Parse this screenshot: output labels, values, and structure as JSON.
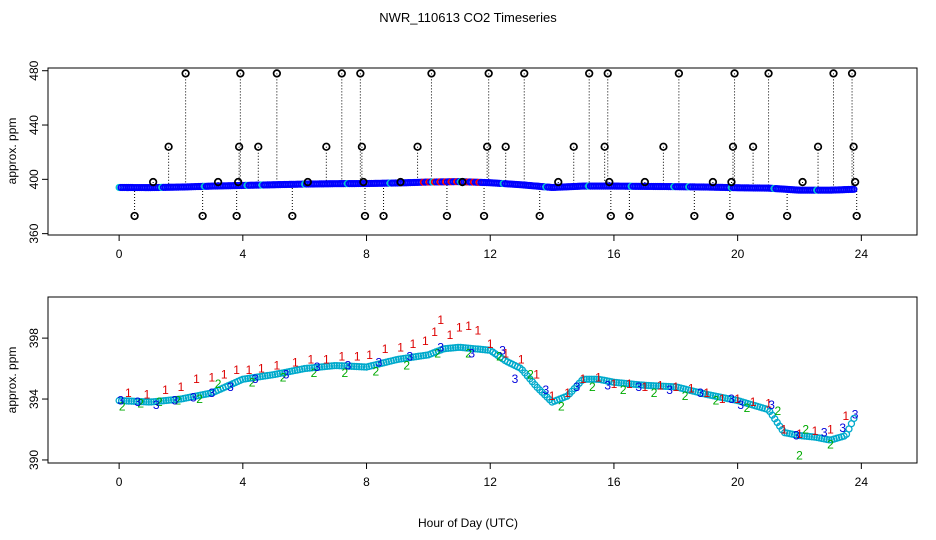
{
  "figure": {
    "title": "NWR_110613  CO2 Timeseries",
    "xlabel": "Hour of Day (UTC)"
  },
  "colors": {
    "outlier": "#000000",
    "main": "#0000ff",
    "secondary": "#ff0000",
    "highlight": "#00cccc",
    "series1": "#dd0000",
    "series2": "#00aa00",
    "series3": "#0000dd",
    "circle": "#00aacc"
  },
  "chart_data": [
    {
      "type": "scatter",
      "panel": "top",
      "title": "",
      "xlabel": "",
      "ylabel": "approx. ppm",
      "xlim": [
        -2.3,
        25.8
      ],
      "ylim": [
        359,
        482
      ],
      "xticks": [
        0,
        4,
        8,
        12,
        16,
        20,
        24
      ],
      "yticks": [
        360,
        400,
        440,
        480
      ],
      "baseline": [
        [
          0,
          394.0
        ],
        [
          1,
          393.9
        ],
        [
          2,
          394.3
        ],
        [
          3,
          395.0
        ],
        [
          4,
          395.5
        ],
        [
          5,
          396.0
        ],
        [
          6,
          396.5
        ],
        [
          7,
          396.8
        ],
        [
          8,
          396.9
        ],
        [
          9,
          397.3
        ],
        [
          10,
          398.0
        ],
        [
          11,
          398.3
        ],
        [
          12,
          397.5
        ],
        [
          13,
          396.0
        ],
        [
          14,
          394.0
        ],
        [
          15,
          395.0
        ],
        [
          16,
          395.0
        ],
        [
          17,
          394.8
        ],
        [
          18,
          394.6
        ],
        [
          19,
          394.3
        ],
        [
          20,
          393.8
        ],
        [
          21,
          393.5
        ],
        [
          22,
          392.0
        ],
        [
          23,
          392.0
        ],
        [
          23.8,
          392.7
        ]
      ],
      "outliers": [
        [
          0.5,
          373
        ],
        [
          1.1,
          398
        ],
        [
          1.6,
          424
        ],
        [
          2.15,
          478
        ],
        [
          2.7,
          373
        ],
        [
          3.2,
          398
        ],
        [
          3.8,
          373
        ],
        [
          3.88,
          424
        ],
        [
          3.92,
          478
        ],
        [
          3.85,
          398
        ],
        [
          4.5,
          424
        ],
        [
          5.1,
          478
        ],
        [
          5.6,
          373
        ],
        [
          6.1,
          398
        ],
        [
          6.7,
          424
        ],
        [
          7.2,
          478
        ],
        [
          7.8,
          478
        ],
        [
          7.85,
          424
        ],
        [
          7.9,
          398
        ],
        [
          7.95,
          373
        ],
        [
          8.55,
          373
        ],
        [
          9.1,
          398
        ],
        [
          9.65,
          424
        ],
        [
          10.1,
          478
        ],
        [
          10.6,
          373
        ],
        [
          11.1,
          398
        ],
        [
          11.8,
          373
        ],
        [
          11.9,
          424
        ],
        [
          11.95,
          478
        ],
        [
          12.5,
          424
        ],
        [
          13.1,
          478
        ],
        [
          13.6,
          373
        ],
        [
          14.2,
          398
        ],
        [
          14.7,
          424
        ],
        [
          15.2,
          478
        ],
        [
          15.7,
          424
        ],
        [
          15.8,
          478
        ],
        [
          15.85,
          398
        ],
        [
          15.9,
          373
        ],
        [
          16.5,
          373
        ],
        [
          17.0,
          398
        ],
        [
          17.6,
          424
        ],
        [
          18.1,
          478
        ],
        [
          18.6,
          373
        ],
        [
          19.2,
          398
        ],
        [
          19.75,
          373
        ],
        [
          19.85,
          424
        ],
        [
          19.9,
          478
        ],
        [
          19.8,
          398
        ],
        [
          20.5,
          424
        ],
        [
          21.0,
          478
        ],
        [
          21.6,
          373
        ],
        [
          22.1,
          398
        ],
        [
          22.6,
          424
        ],
        [
          23.1,
          478
        ],
        [
          23.7,
          478
        ],
        [
          23.75,
          424
        ],
        [
          23.8,
          398
        ],
        [
          23.85,
          373
        ]
      ]
    },
    {
      "type": "scatter",
      "panel": "bottom",
      "title": "",
      "xlabel": "Hour of Day (UTC)",
      "ylabel": "approx. ppm",
      "xlim": [
        -2.3,
        25.8
      ],
      "ylim": [
        389.8,
        400.7
      ],
      "xticks": [
        0,
        4,
        8,
        12,
        16,
        20,
        24
      ],
      "yticks": [
        390,
        394,
        398
      ],
      "series": [
        {
          "label": "1",
          "x": [
            0.3,
            0.9,
            1.5,
            2.0,
            2.5,
            3.0,
            3.4,
            3.8,
            4.2,
            4.6,
            5.1,
            5.7,
            6.2,
            6.7,
            7.2,
            7.7,
            8.1,
            8.6,
            9.1,
            9.5,
            9.9,
            10.2,
            10.4,
            10.7,
            11.0,
            11.3,
            11.6,
            12.0,
            12.5,
            13.0,
            13.5,
            14.0,
            14.5,
            15.0,
            15.5,
            16.0,
            16.5,
            17.0,
            17.5,
            18.0,
            18.5,
            19.0,
            19.5,
            20.0,
            20.5,
            21.0,
            21.5,
            22.0,
            22.5,
            23.0,
            23.5
          ],
          "y": [
            394.4,
            394.3,
            394.6,
            394.8,
            395.3,
            395.4,
            395.6,
            395.9,
            395.9,
            396.0,
            396.2,
            396.4,
            396.6,
            396.6,
            396.8,
            396.8,
            396.9,
            397.3,
            397.4,
            397.6,
            397.8,
            398.4,
            399.2,
            398.2,
            398.7,
            398.8,
            398.5,
            397.6,
            397.0,
            396.6,
            395.6,
            394.2,
            394.4,
            395.3,
            395.4,
            395.0,
            395.0,
            394.8,
            394.9,
            394.8,
            394.7,
            394.4,
            394.0,
            394.0,
            393.8,
            393.7,
            392.0,
            391.7,
            391.9,
            392.0,
            392.9
          ]
        },
        {
          "label": "2",
          "x": [
            0.1,
            0.7,
            1.3,
            1.9,
            2.6,
            3.2,
            4.3,
            5.3,
            6.3,
            7.3,
            8.3,
            9.3,
            10.3,
            11.3,
            12.3,
            13.3,
            14.3,
            15.3,
            16.3,
            17.3,
            18.3,
            19.3,
            20.3,
            21.3,
            22.0,
            22.2,
            23.0
          ],
          "y": [
            393.5,
            393.7,
            393.8,
            393.9,
            394.0,
            395.0,
            395.1,
            395.4,
            395.7,
            395.7,
            395.8,
            396.2,
            397.0,
            397.0,
            396.8,
            395.6,
            393.5,
            394.8,
            394.6,
            394.4,
            394.2,
            393.9,
            393.4,
            393.2,
            390.3,
            392.0,
            391.0
          ]
        },
        {
          "label": "3",
          "x": [
            0.05,
            0.6,
            1.2,
            1.8,
            2.4,
            3.0,
            3.6,
            4.4,
            5.4,
            6.4,
            7.4,
            8.4,
            9.4,
            10.4,
            11.4,
            12.4,
            12.8,
            13.8,
            14.8,
            15.8,
            16.8,
            17.8,
            18.8,
            19.8,
            20.1,
            21.1,
            21.9,
            22.8,
            23.4,
            23.8
          ],
          "y": [
            393.9,
            393.8,
            393.6,
            393.9,
            394.1,
            394.4,
            394.8,
            395.3,
            395.6,
            396.1,
            396.2,
            396.4,
            396.8,
            397.4,
            397.0,
            397.2,
            395.3,
            394.6,
            394.8,
            394.9,
            394.8,
            394.6,
            394.4,
            394.0,
            393.6,
            393.6,
            391.6,
            391.8,
            392.1,
            393.0
          ]
        },
        {
          "label": "circles",
          "x": [
            0,
            1,
            2,
            3,
            4,
            5,
            6,
            7,
            8,
            9,
            10,
            10.5,
            11,
            11.5,
            12,
            12.5,
            13,
            13.5,
            14,
            14.5,
            15,
            15.5,
            16,
            17,
            18,
            19,
            20,
            20.5,
            21,
            21.5,
            22,
            22.5,
            23,
            23.5,
            23.8
          ],
          "y": [
            393.9,
            393.8,
            394.0,
            394.4,
            395.3,
            395.6,
            396.0,
            396.2,
            396.1,
            396.6,
            396.9,
            397.3,
            397.4,
            397.3,
            397.2,
            396.5,
            396.0,
            394.8,
            393.8,
            394.2,
            395.3,
            395.3,
            395.1,
            394.9,
            394.8,
            394.3,
            393.9,
            393.6,
            393.3,
            391.8,
            391.6,
            391.5,
            391.3,
            391.6,
            392.9
          ]
        }
      ]
    }
  ]
}
